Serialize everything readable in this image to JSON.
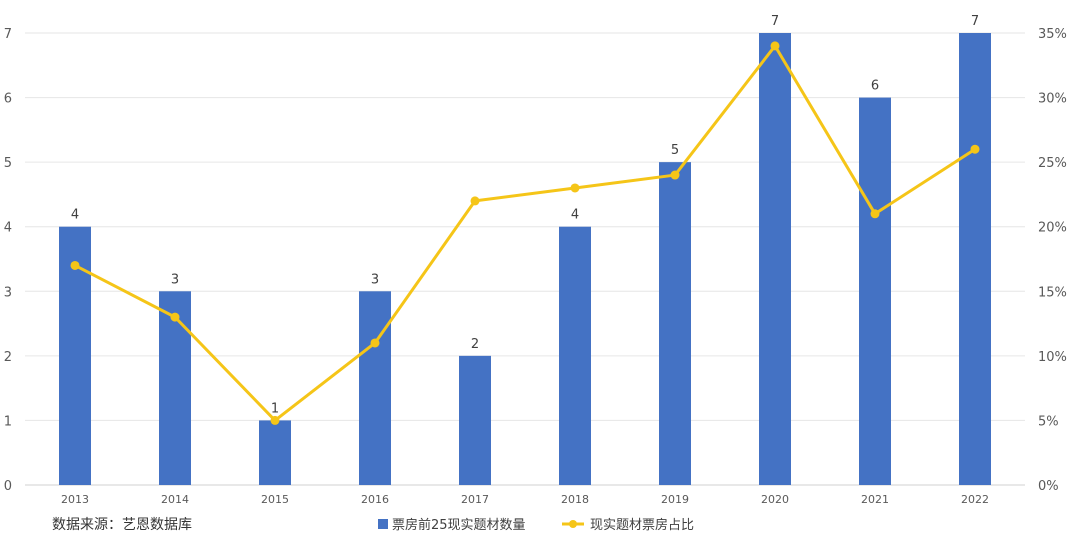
{
  "chart_data": {
    "type": "bar",
    "categories": [
      "2013",
      "2014",
      "2015",
      "2016",
      "2017",
      "2018",
      "2019",
      "2020",
      "2021",
      "2022"
    ],
    "series": [
      {
        "name": "票房前25现实题材数量",
        "type": "bar",
        "axis": "left",
        "color": "#4472C4",
        "values": [
          4,
          3,
          1,
          3,
          2,
          4,
          5,
          7,
          6,
          7
        ]
      },
      {
        "name": "现实题材票房占比",
        "type": "line",
        "axis": "right",
        "color": "#F5C518",
        "values": [
          17,
          13,
          5,
          11,
          22,
          23,
          24,
          34,
          21,
          26
        ]
      }
    ],
    "y_left": {
      "min": 0,
      "max": 7,
      "ticks": [
        "0",
        "1",
        "2",
        "3",
        "4",
        "5",
        "6",
        "7"
      ]
    },
    "y_right": {
      "min": 0,
      "max": 35,
      "ticks": [
        "0%",
        "5%",
        "10%",
        "15%",
        "20%",
        "25%",
        "30%",
        "35%"
      ]
    },
    "data_labels": [
      "4",
      "3",
      "1",
      "3",
      "2",
      "4",
      "5",
      "7",
      "6",
      "7"
    ],
    "grid": true,
    "legend_position": "bottom"
  },
  "source_note": "数据来源：艺恩数据库"
}
